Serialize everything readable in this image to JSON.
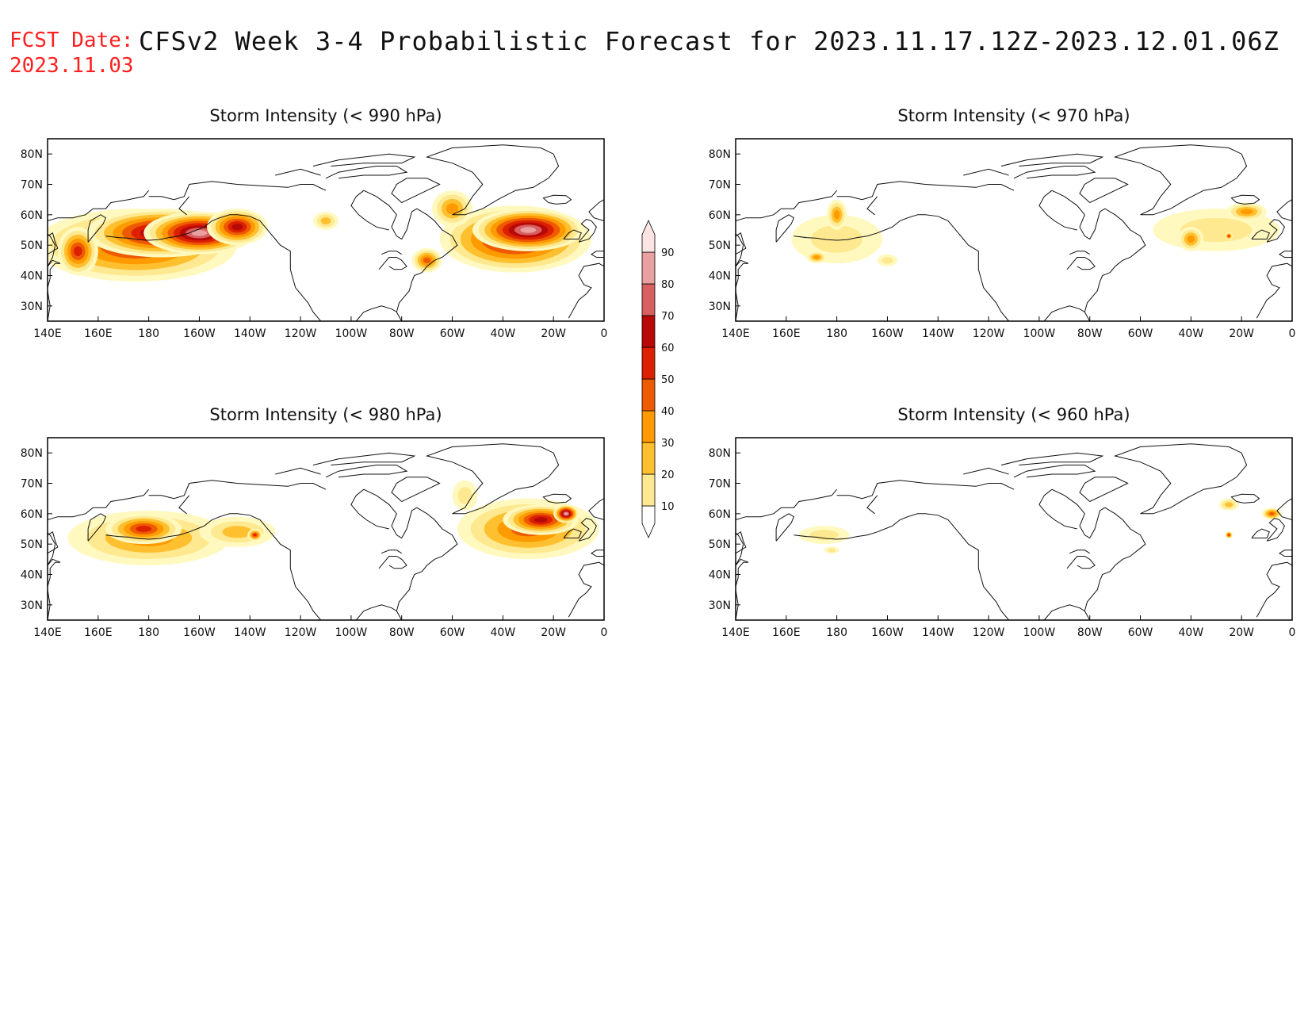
{
  "header": {
    "fcst_label": "FCST Date:",
    "fcst_date": "2023.11.03",
    "title": "CFSv2 Week 3-4 Probabilistic Forecast for 2023.11.17.12Z-2023.12.01.06Z"
  },
  "axes": {
    "lon_ticks": [
      "140E",
      "160E",
      "180",
      "160W",
      "140W",
      "120W",
      "100W",
      "80W",
      "60W",
      "40W",
      "20W",
      "0"
    ],
    "lat_ticks": [
      "80N",
      "70N",
      "60N",
      "50N",
      "40N",
      "30N"
    ]
  },
  "colorbar": {
    "levels": [
      "10",
      "20",
      "30",
      "40",
      "50",
      "60",
      "70",
      "80",
      "90"
    ],
    "colors": [
      "#fff9c0",
      "#ffe990",
      "#ffc030",
      "#ff9a00",
      "#ee5a00",
      "#dd2000",
      "#b80808",
      "#d86060",
      "#eaa0a0",
      "#fde4e4"
    ]
  },
  "chart_data": [
    {
      "type": "heatmap",
      "title": "Storm Intensity (< 990 hPa)",
      "level_class": "very high",
      "blobs": [
        {
          "lon": 175,
          "lat": 50,
          "dlon": 40,
          "dlat": 12,
          "level": 5
        },
        {
          "lon": 185,
          "lat": 54,
          "dlon": 30,
          "dlat": 8,
          "level": 7
        },
        {
          "lon": 200,
          "lat": 54,
          "dlon": 22,
          "dlat": 7,
          "level": 8
        },
        {
          "lon": 152,
          "lat": 48,
          "dlon": 8,
          "dlat": 8,
          "level": 5
        },
        {
          "lon": 215,
          "lat": 56,
          "dlon": 12,
          "dlat": 6,
          "level": 6
        },
        {
          "lon": 250,
          "lat": 58,
          "dlon": 5,
          "dlat": 3,
          "level": 2
        },
        {
          "lon": 325,
          "lat": 52,
          "dlon": 30,
          "dlat": 11,
          "level": 6
        },
        {
          "lon": 330,
          "lat": 55,
          "dlon": 22,
          "dlat": 7,
          "level": 8
        },
        {
          "lon": 300,
          "lat": 62,
          "dlon": 8,
          "dlat": 6,
          "level": 3
        },
        {
          "lon": 290,
          "lat": 45,
          "dlon": 6,
          "dlat": 4,
          "level": 4
        }
      ]
    },
    {
      "type": "heatmap",
      "title": "Storm Intensity (< 970 hPa)",
      "level_class": "low",
      "blobs": [
        {
          "lon": 180,
          "lat": 52,
          "dlon": 18,
          "dlat": 8,
          "level": 1
        },
        {
          "lon": 180,
          "lat": 60,
          "dlon": 4,
          "dlat": 5,
          "level": 3
        },
        {
          "lon": 172,
          "lat": 46,
          "dlon": 4,
          "dlat": 2,
          "level": 3
        },
        {
          "lon": 200,
          "lat": 45,
          "dlon": 4,
          "dlat": 2,
          "level": 1
        },
        {
          "lon": 330,
          "lat": 55,
          "dlon": 25,
          "dlat": 7,
          "level": 1
        },
        {
          "lon": 320,
          "lat": 52,
          "dlon": 5,
          "dlat": 4,
          "level": 3
        },
        {
          "lon": 342,
          "lat": 61,
          "dlon": 8,
          "dlat": 3,
          "level": 3
        },
        {
          "lon": 335,
          "lat": 53,
          "dlon": 1.5,
          "dlat": 1.2,
          "level": 5
        }
      ]
    },
    {
      "type": "heatmap",
      "title": "Storm Intensity (< 980 hPa)",
      "level_class": "high",
      "blobs": [
        {
          "lon": 180,
          "lat": 52,
          "dlon": 32,
          "dlat": 9,
          "level": 3
        },
        {
          "lon": 178,
          "lat": 55,
          "dlon": 15,
          "dlat": 5,
          "level": 5
        },
        {
          "lon": 215,
          "lat": 54,
          "dlon": 15,
          "dlat": 5,
          "level": 2
        },
        {
          "lon": 222,
          "lat": 53,
          "dlon": 3,
          "dlat": 2,
          "level": 5
        },
        {
          "lon": 330,
          "lat": 55,
          "dlon": 28,
          "dlat": 10,
          "level": 4
        },
        {
          "lon": 335,
          "lat": 58,
          "dlon": 15,
          "dlat": 5,
          "level": 6
        },
        {
          "lon": 345,
          "lat": 60,
          "dlon": 5,
          "dlat": 3,
          "level": 8
        },
        {
          "lon": 305,
          "lat": 66,
          "dlon": 5,
          "dlat": 5,
          "level": 1
        }
      ]
    },
    {
      "type": "heatmap",
      "title": "Storm Intensity (< 960 hPa)",
      "level_class": "very low",
      "blobs": [
        {
          "lon": 175,
          "lat": 53,
          "dlon": 10,
          "dlat": 3,
          "level": 1
        },
        {
          "lon": 178,
          "lat": 48,
          "dlon": 3,
          "dlat": 1.2,
          "level": 1
        },
        {
          "lon": 335,
          "lat": 63,
          "dlon": 4,
          "dlat": 2,
          "level": 2
        },
        {
          "lon": 352,
          "lat": 60,
          "dlon": 4,
          "dlat": 2,
          "level": 4
        },
        {
          "lon": 335,
          "lat": 53,
          "dlon": 1.5,
          "dlat": 1.2,
          "level": 5
        }
      ]
    }
  ]
}
